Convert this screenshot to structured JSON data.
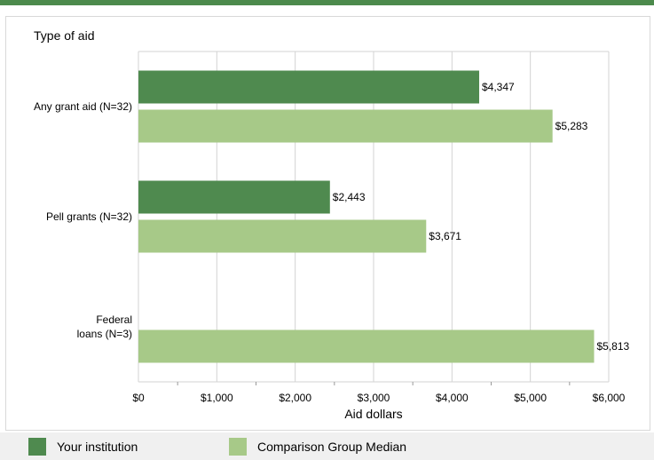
{
  "colors": {
    "top_bar": "#4c8a4c",
    "series_institution": "#4f8a4f",
    "series_comparison": "#a7c988",
    "grid": "#d3d3d3",
    "legend_background": "#f0f0f0"
  },
  "legend": {
    "items": [
      {
        "label": "Your institution",
        "color": "#4f8a4f"
      },
      {
        "label": "Comparison Group Median",
        "color": "#a7c988"
      }
    ],
    "placement": "bottom"
  },
  "chart_data": {
    "type": "bar",
    "orientation": "horizontal",
    "title": "",
    "ylabel": "Type of aid",
    "xlabel": "Aid dollars",
    "categories": [
      "Any grant aid (N=32)",
      "Pell grants (N=32)",
      "Federal loans (N=3)"
    ],
    "category_lines": [
      [
        "Any grant aid (N=32)"
      ],
      [
        "Pell grants (N=32)"
      ],
      [
        "Federal",
        "loans (N=3)"
      ]
    ],
    "series": [
      {
        "name": "Your institution",
        "values": [
          4347,
          2443,
          null
        ],
        "labels": [
          "$4,347",
          "$2,443",
          ""
        ]
      },
      {
        "name": "Comparison Group Median",
        "values": [
          5283,
          3671,
          5813
        ],
        "labels": [
          "$5,283",
          "$3,671",
          "$5,813"
        ]
      }
    ],
    "xlim": [
      0,
      6000
    ],
    "xticks": [
      0,
      1000,
      2000,
      3000,
      4000,
      5000,
      6000
    ],
    "xtick_labels": [
      "$0",
      "$1,000",
      "$2,000",
      "$3,000",
      "$4,000",
      "$5,000",
      "$6,000"
    ],
    "grid": true
  }
}
